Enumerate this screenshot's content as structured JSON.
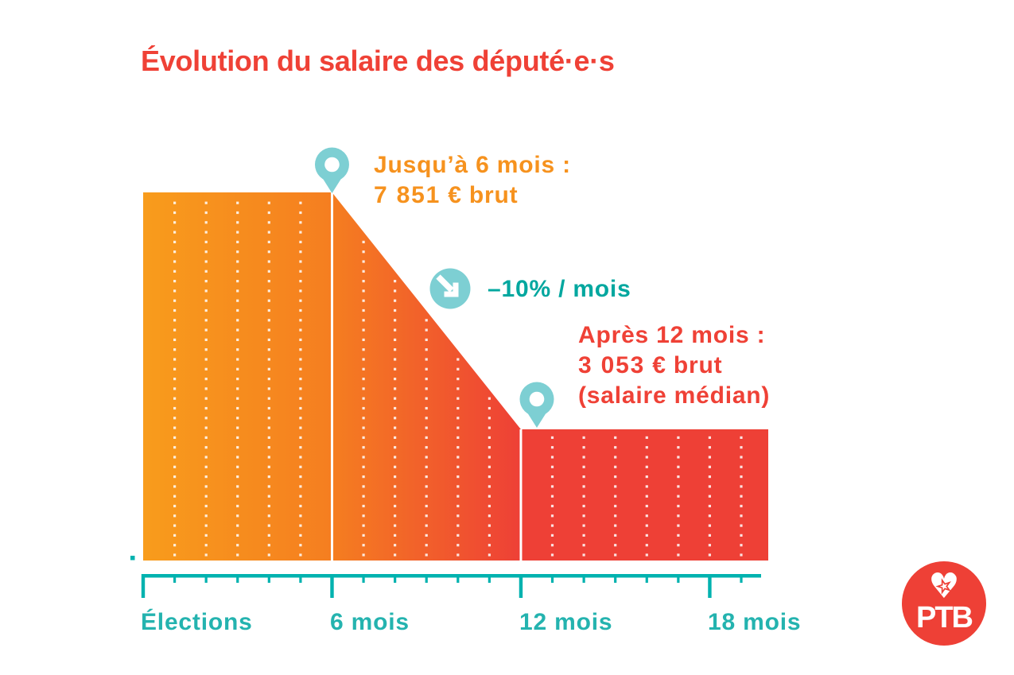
{
  "title": "Évolution du salaire des député·e·s",
  "colors": {
    "title_red": "#EF4136",
    "red": "#EE4036",
    "orange": "#F6921E",
    "orange_light": "#F89C1C",
    "orange_deep": "#F57E20",
    "axis_teal": "#00B2AF",
    "label_teal": "#24B3AF",
    "rate_teal": "#00A79F",
    "teal_light": "#7DCFD3",
    "white": "#FFFFFF"
  },
  "icons": {
    "pin": "map-pin",
    "decline_arrow": "arrow-down-right",
    "heart_glyph": "♥",
    "star_glyph": "★"
  },
  "annotations": {
    "until6": {
      "line1": "Jusqu’à 6 mois :",
      "value": "7 851",
      "unit": "€ brut"
    },
    "rate": {
      "label": "–10% / mois"
    },
    "after12": {
      "line1": "Après 12 mois :",
      "value": "3 053",
      "unit": "€ brut",
      "line3": "(salaire médian)"
    }
  },
  "x_axis": {
    "labels": [
      "Élections",
      "6 mois",
      "12 mois",
      "18 mois"
    ]
  },
  "logo": {
    "text": "PTB"
  },
  "chart_data": {
    "type": "area",
    "title": "Évolution du salaire des député·e·s",
    "x_unit": "mois après les élections",
    "y_unit": "salaire mensuel brut (EUR)",
    "points": [
      {
        "x_label": "Élections",
        "month": 0,
        "salary_eur": 7851
      },
      {
        "month": 6,
        "salary_eur": 7851
      },
      {
        "month": 12,
        "salary_eur": 3053
      },
      {
        "month": 19.8,
        "salary_eur": 3053
      }
    ],
    "decline_rate": "–10% / mois",
    "x_ticks_major_months": [
      0,
      6,
      12,
      18
    ],
    "x_tick_labels": [
      "Élections",
      "6 mois",
      "12 mois",
      "18 mois"
    ],
    "minor_tick_every_months": 1,
    "x_max_month": 19.8,
    "grid": "vertical dotted white lines, one per month",
    "legend": "none",
    "annotations": [
      "Jusqu’à 6 mois : 7 851 € brut",
      "–10% / mois",
      "Après 12 mois : 3 053 € brut (salaire médian)"
    ]
  }
}
